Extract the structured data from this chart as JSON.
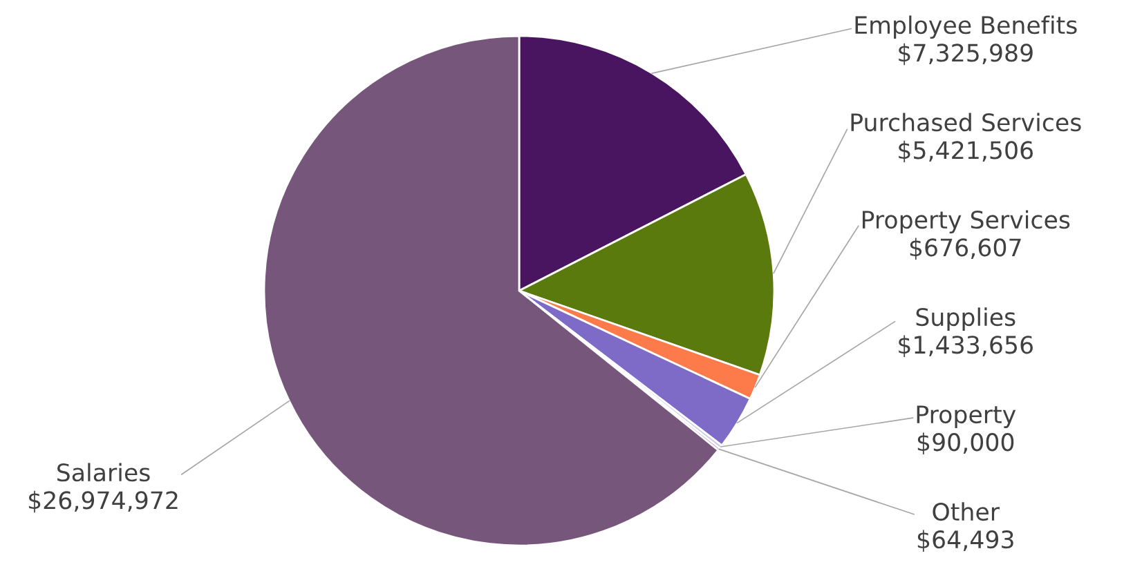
{
  "chart_data": {
    "type": "pie",
    "categories": [
      "Employee Benefits",
      "Purchased Services",
      "Property Services",
      "Supplies",
      "Property",
      "Other",
      "Salaries"
    ],
    "values": [
      7325989,
      5421506,
      676607,
      1433656,
      90000,
      64493,
      26974972
    ],
    "value_labels": [
      "$7,325,989",
      "$5,421,506",
      "$676,607",
      "$1,433,656",
      "$90,000",
      "$64,493",
      "$26,974,972"
    ],
    "colors": [
      "#4a1560",
      "#5a7a0e",
      "#fd7a4a",
      "#7e6bc8",
      "#c8c8e8",
      "#b07ab0",
      "#77567c"
    ]
  }
}
